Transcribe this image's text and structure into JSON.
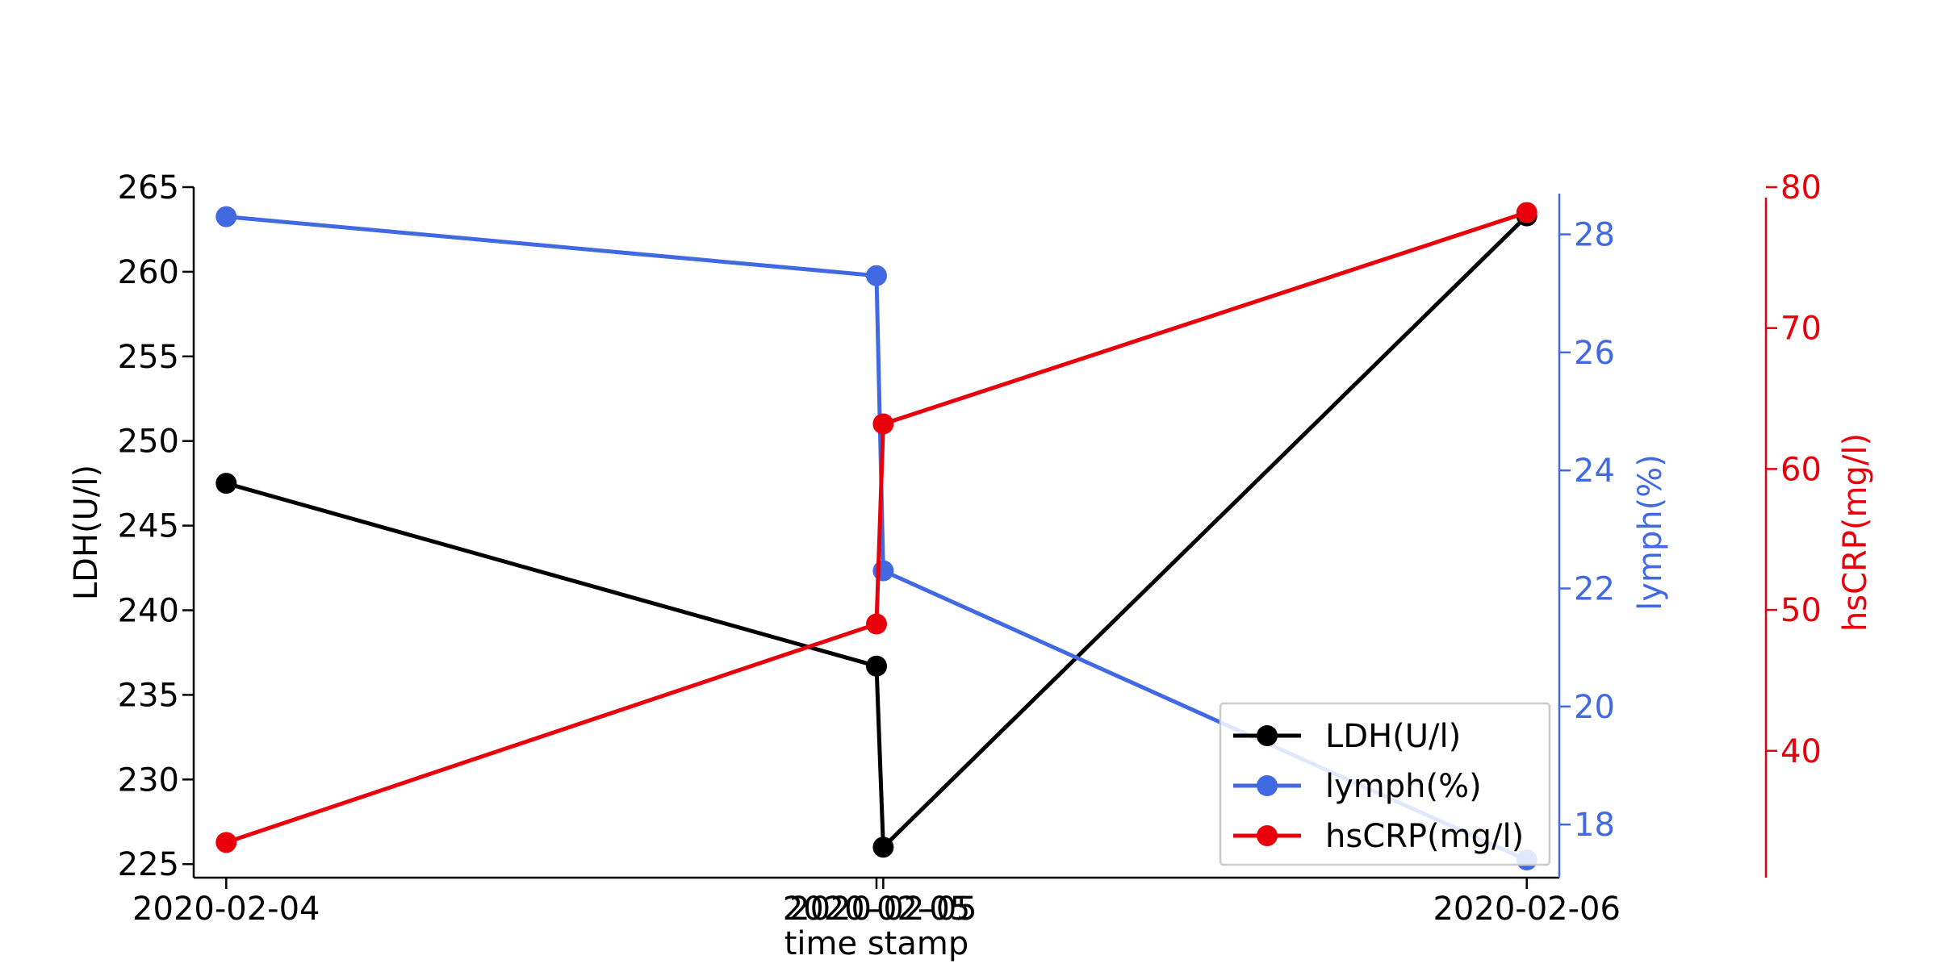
{
  "chart_data": {
    "type": "line",
    "xlabel": "time stamp",
    "x_tick_labels": [
      "2020-02-04",
      "2020-02-05",
      "2020-02-05",
      "2020-02-06"
    ],
    "x": [
      "2020-02-04 00:00",
      "2020-02-05 00:00",
      "2020-02-05 00:15",
      "2020-02-06 00:00"
    ],
    "xlim": [
      "2020-02-03 22:48",
      "2020-02-06 01:12"
    ],
    "axes": [
      {
        "id": "ldh",
        "label": "LDH(U/l)",
        "side": "left",
        "ylim": [
          224.2,
          265
        ],
        "ticks": [
          225,
          230,
          235,
          240,
          245,
          250,
          255,
          260,
          265
        ],
        "color": "#000000"
      },
      {
        "id": "lymph",
        "label": "lymph(%)",
        "side": "right",
        "ylim": [
          17.1,
          28.8
        ],
        "ticks": [
          18,
          20,
          22,
          24,
          26,
          28
        ],
        "color": "#4169e1"
      },
      {
        "id": "hscrp",
        "label": "hsCRP(mg/l)",
        "side": "right-outer",
        "ylim": [
          31,
          80
        ],
        "ticks": [
          40,
          50,
          60,
          70,
          80
        ],
        "color": "#e8000b"
      }
    ],
    "series": [
      {
        "name": "LDH(U/l)",
        "axis": "ldh",
        "color": "#000000",
        "values": [
          247.5,
          236.7,
          226,
          263.3
        ]
      },
      {
        "name": "lymph(%)",
        "axis": "lymph",
        "color": "#4169e1",
        "values": [
          28.3,
          27.3,
          22.3,
          17.4
        ]
      },
      {
        "name": "hsCRP(mg/l)",
        "axis": "hscrp",
        "color": "#e8000b",
        "values": [
          33.5,
          49.0,
          63.2,
          78.2
        ]
      }
    ],
    "legend_position": "lower-right",
    "grid": false
  }
}
